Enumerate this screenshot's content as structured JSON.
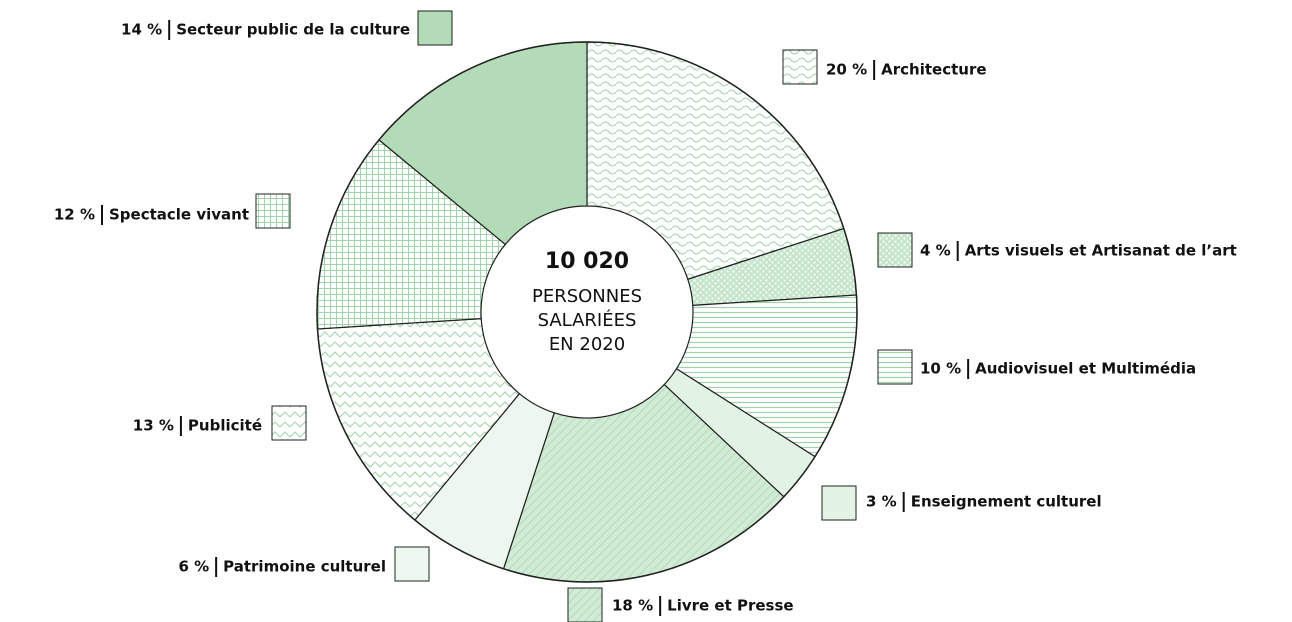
{
  "chart_data": {
    "type": "pie",
    "donut": true,
    "categories": [
      "Architecture",
      "Arts visuels et Artisanat de l’art",
      "Audiovisuel et Multimédia",
      "Enseignement culturel",
      "Livre et Presse",
      "Patrimoine culturel",
      "Publicité",
      "Spectacle vivant",
      "Secteur public de la culture"
    ],
    "values": [
      20,
      4,
      10,
      3,
      18,
      6,
      13,
      12,
      14
    ],
    "value_labels": [
      "20 %",
      "4 %",
      "10 %",
      "3 %",
      "18 %",
      "6 %",
      "13 %",
      "12 %",
      "14 %"
    ],
    "colors": [
      "#8fcf99",
      "#8fcf99",
      "#8fcf99",
      "#e2f2e4",
      "#8fcf99",
      "#eef7ef",
      "#8fcf99",
      "#8fcf99",
      "#b3dbb8"
    ],
    "center_label": "10 020",
    "center_text": [
      "PERSONNES",
      "SALARIÉES",
      "EN 2020"
    ]
  }
}
